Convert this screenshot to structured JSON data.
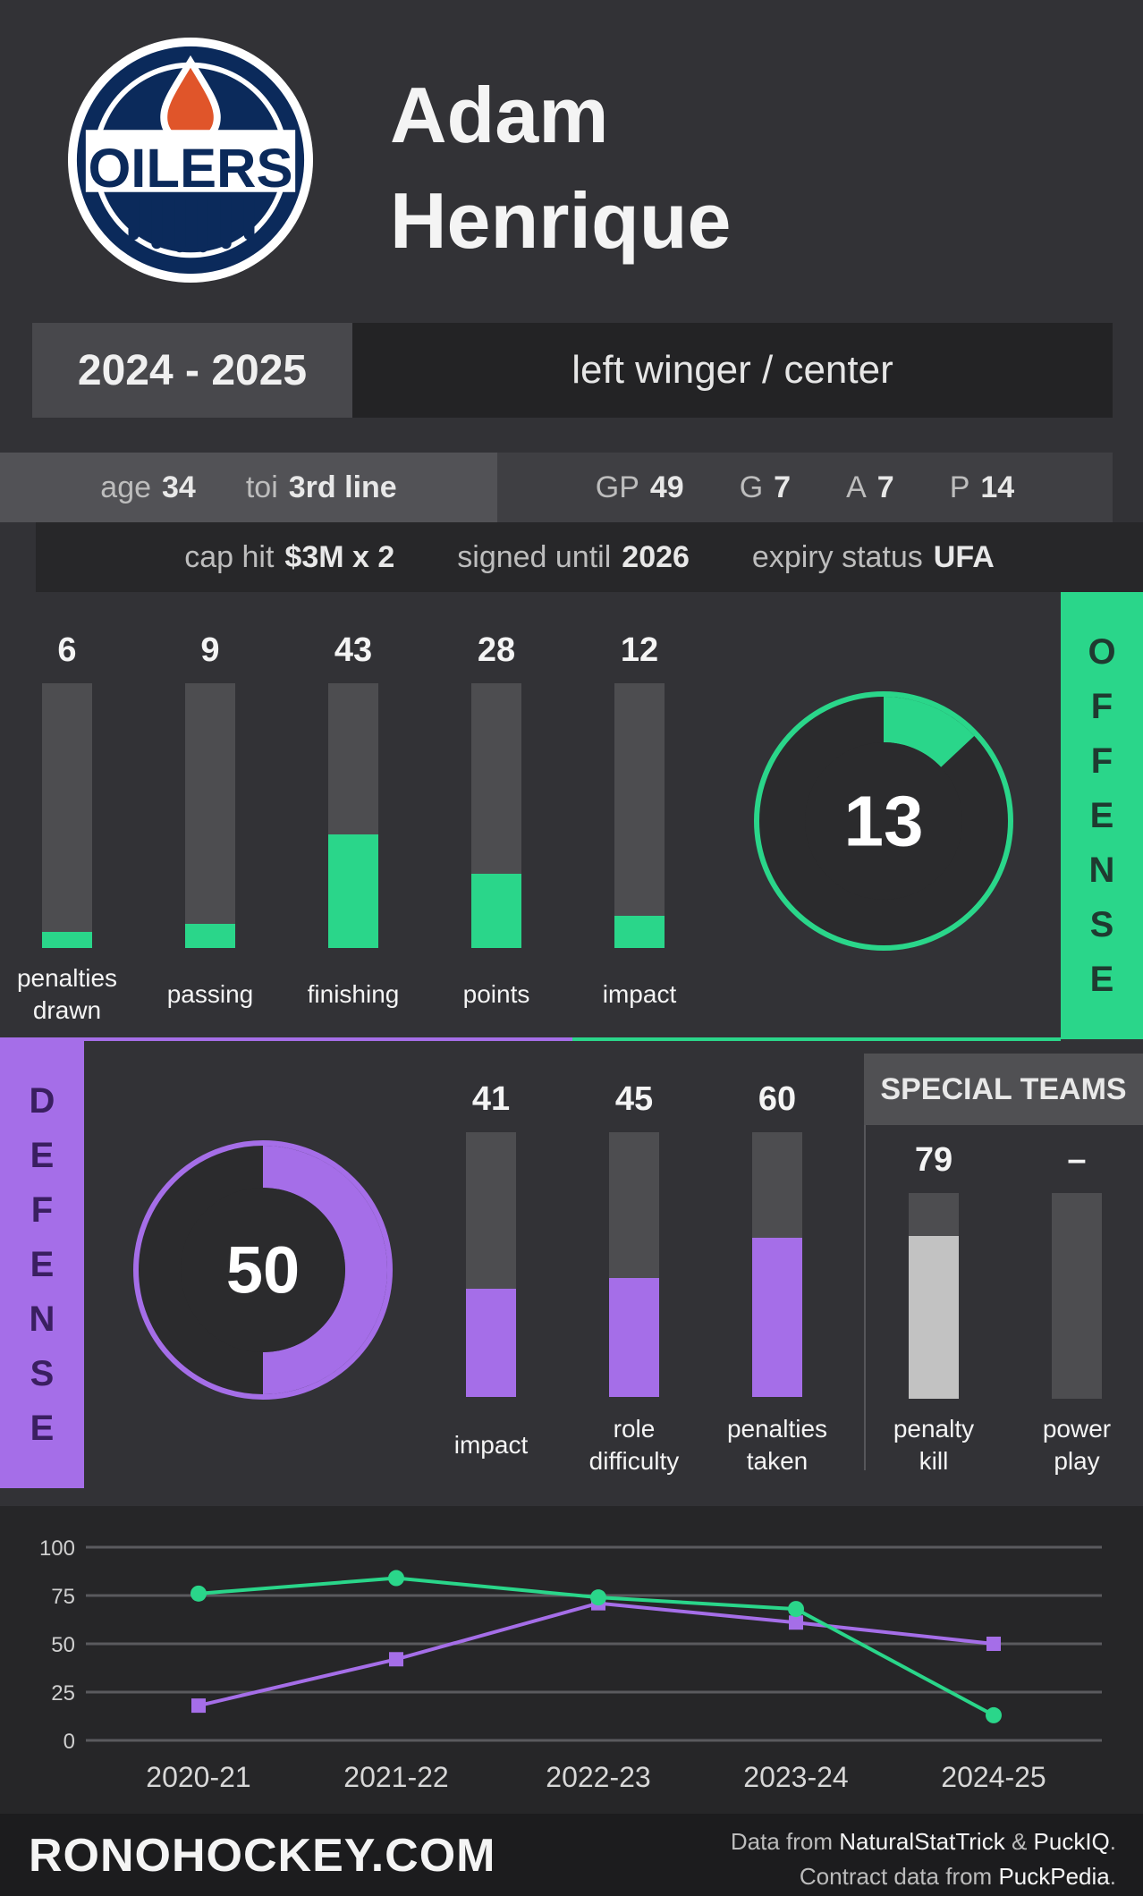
{
  "header": {
    "team_logo_text": "OILERS",
    "first_name": "Adam",
    "last_name": "Henrique"
  },
  "season": "2024 - 2025",
  "position": "left winger / center",
  "stats": {
    "age_label": "age",
    "age": "34",
    "toi_label": "toi",
    "toi": "3rd line",
    "gp_label": "GP",
    "gp": "49",
    "g_label": "G",
    "g": "7",
    "a_label": "A",
    "a": "7",
    "p_label": "P",
    "p": "14"
  },
  "contract": {
    "cap_hit_label": "cap hit",
    "cap_hit": "$3M x 2",
    "signed_until_label": "signed until",
    "signed_until": "2026",
    "expiry_label": "expiry status",
    "expiry": "UFA"
  },
  "offense": {
    "tab_letters": [
      "O",
      "F",
      "F",
      "E",
      "N",
      "S",
      "E"
    ],
    "overall": 13,
    "bars": [
      {
        "label_lines": [
          "penalties",
          "drawn"
        ],
        "value": 6
      },
      {
        "label_lines": [
          "passing"
        ],
        "value": 9
      },
      {
        "label_lines": [
          "finishing"
        ],
        "value": 43
      },
      {
        "label_lines": [
          "points"
        ],
        "value": 28
      },
      {
        "label_lines": [
          "impact"
        ],
        "value": 12
      }
    ]
  },
  "defense": {
    "tab_letters": [
      "D",
      "E",
      "F",
      "E",
      "N",
      "S",
      "E"
    ],
    "overall": 50,
    "bars": [
      {
        "label_lines": [
          "impact"
        ],
        "value": 41
      },
      {
        "label_lines": [
          "role",
          "difficulty"
        ],
        "value": 45
      },
      {
        "label_lines": [
          "penalties",
          "taken"
        ],
        "value": 60
      }
    ]
  },
  "special_teams": {
    "title": "SPECIAL TEAMS",
    "bars": [
      {
        "label_lines": [
          "penalty",
          "kill"
        ],
        "value_text": "79",
        "value": 79
      },
      {
        "label_lines": [
          "power",
          "play"
        ],
        "value_text": "–",
        "value": 0
      }
    ]
  },
  "colors": {
    "offense": "#2ad68a",
    "defense": "#a56ee8",
    "special": "#c2c2c2",
    "track": "#4d4d50"
  },
  "chart_data": {
    "type": "line",
    "categories": [
      "2020-21",
      "2021-22",
      "2022-23",
      "2023-24",
      "2024-25"
    ],
    "series": [
      {
        "name": "offense",
        "values": [
          76,
          84,
          74,
          68,
          13
        ]
      },
      {
        "name": "defense",
        "values": [
          18,
          42,
          71,
          61,
          50
        ]
      }
    ],
    "yticks": [
      0,
      25,
      50,
      75,
      100
    ],
    "ylim": [
      0,
      100
    ]
  },
  "footer": {
    "brand": "RONOHOCKEY.COM",
    "credit_prefix": "Data from",
    "source1": "NaturalStatTrick",
    "amp": "&",
    "source2": "PuckIQ",
    "period1": ".",
    "contract_prefix": "Contract data from",
    "source3": "PuckPedia",
    "period2": "."
  }
}
